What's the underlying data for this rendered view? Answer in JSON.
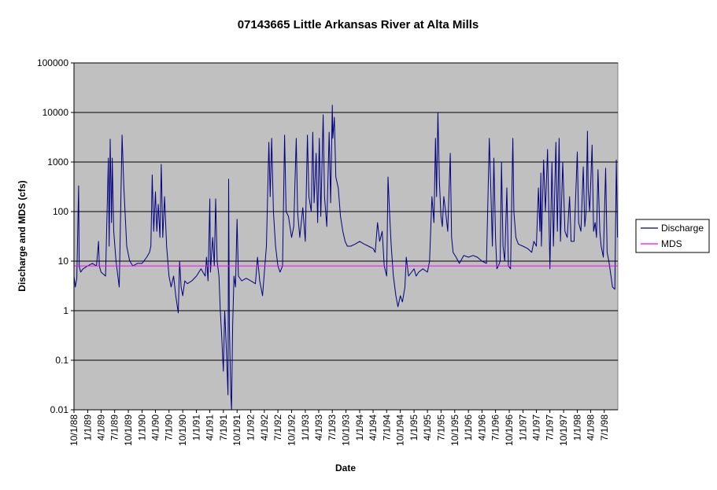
{
  "chart_data": {
    "type": "line",
    "title": "07143665 Little Arkansas River at Alta Mills",
    "xlabel": "Date",
    "ylabel": "Discharge and MDS (cfs)",
    "y_scale": "log",
    "ylim": [
      0.01,
      100000
    ],
    "y_ticks": [
      "0.01",
      "0.1",
      "1",
      "10",
      "100",
      "1000",
      "10000",
      "100000"
    ],
    "xlim": [
      "1988-10-01",
      "1998-09-30"
    ],
    "x_ticks": [
      "10/1/88",
      "1/1/89",
      "4/1/89",
      "7/1/89",
      "10/1/89",
      "1/1/90",
      "4/1/90",
      "7/1/90",
      "10/1/90",
      "1/1/91",
      "4/1/91",
      "7/1/91",
      "10/1/91",
      "1/1/92",
      "4/1/92",
      "7/1/92",
      "10/1/92",
      "1/1/93",
      "4/1/93",
      "7/1/93",
      "10/1/93",
      "1/1/94",
      "4/1/94",
      "7/1/94",
      "10/1/94",
      "1/1/95",
      "4/1/95",
      "7/1/95",
      "10/1/95",
      "1/1/96",
      "4/1/96",
      "7/1/96",
      "10/1/96",
      "1/1/97",
      "4/1/97",
      "7/1/97",
      "10/1/97",
      "1/1/98",
      "4/1/98",
      "7/1/98"
    ],
    "grid": true,
    "legend_position": "right",
    "background": "#c0c0c0",
    "series": [
      {
        "name": "Discharge",
        "color": "#000080",
        "points": [
          [
            "1988-10-01",
            5
          ],
          [
            "1988-10-10",
            3
          ],
          [
            "1988-10-20",
            4.5
          ],
          [
            "1988-11-01",
            330
          ],
          [
            "1988-11-05",
            8
          ],
          [
            "1988-11-15",
            6
          ],
          [
            "1988-12-01",
            7
          ],
          [
            "1989-01-01",
            8
          ],
          [
            "1989-02-01",
            9
          ],
          [
            "1989-03-01",
            8
          ],
          [
            "1989-03-15",
            25
          ],
          [
            "1989-03-20",
            8
          ],
          [
            "1989-04-01",
            6
          ],
          [
            "1989-05-01",
            5
          ],
          [
            "1989-05-20",
            1200
          ],
          [
            "1989-05-25",
            20
          ],
          [
            "1989-06-01",
            2900
          ],
          [
            "1989-06-10",
            60
          ],
          [
            "1989-06-15",
            1200
          ],
          [
            "1989-06-25",
            40
          ],
          [
            "1989-07-10",
            10
          ],
          [
            "1989-08-01",
            3
          ],
          [
            "1989-08-20",
            3500
          ],
          [
            "1989-09-01",
            300
          ],
          [
            "1989-09-20",
            20
          ],
          [
            "1989-10-10",
            10
          ],
          [
            "1989-11-01",
            8
          ],
          [
            "1989-12-01",
            9
          ],
          [
            "1990-01-01",
            9
          ],
          [
            "1990-02-01",
            12
          ],
          [
            "1990-02-20",
            15
          ],
          [
            "1990-03-01",
            20
          ],
          [
            "1990-03-10",
            550
          ],
          [
            "1990-03-20",
            40
          ],
          [
            "1990-04-01",
            250
          ],
          [
            "1990-04-10",
            40
          ],
          [
            "1990-04-20",
            140
          ],
          [
            "1990-05-01",
            30
          ],
          [
            "1990-05-10",
            900
          ],
          [
            "1990-05-20",
            30
          ],
          [
            "1990-06-01",
            200
          ],
          [
            "1990-06-15",
            20
          ],
          [
            "1990-07-01",
            5
          ],
          [
            "1990-07-15",
            3
          ],
          [
            "1990-08-01",
            5
          ],
          [
            "1990-08-15",
            2
          ],
          [
            "1990-09-01",
            0.9
          ],
          [
            "1990-09-10",
            10
          ],
          [
            "1990-09-20",
            3
          ],
          [
            "1990-10-01",
            2
          ],
          [
            "1990-10-15",
            4
          ],
          [
            "1990-11-01",
            3.5
          ],
          [
            "1990-12-01",
            4
          ],
          [
            "1991-01-01",
            5
          ],
          [
            "1991-02-01",
            7
          ],
          [
            "1991-03-01",
            5
          ],
          [
            "1991-03-10",
            12
          ],
          [
            "1991-03-20",
            4
          ],
          [
            "1991-04-01",
            180
          ],
          [
            "1991-04-05",
            6
          ],
          [
            "1991-04-20",
            30
          ],
          [
            "1991-05-01",
            8
          ],
          [
            "1991-05-10",
            180
          ],
          [
            "1991-05-20",
            10
          ],
          [
            "1991-06-01",
            5
          ],
          [
            "1991-06-10",
            1
          ],
          [
            "1991-06-20",
            0.3
          ],
          [
            "1991-07-01",
            0.06
          ],
          [
            "1991-07-10",
            1
          ],
          [
            "1991-07-20",
            0.2
          ],
          [
            "1991-08-01",
            0.02
          ],
          [
            "1991-08-05",
            450
          ],
          [
            "1991-08-10",
            0.5
          ],
          [
            "1991-08-20",
            0.02
          ],
          [
            "1991-08-25",
            0.01
          ],
          [
            "1991-09-01",
            0.5
          ],
          [
            "1991-09-10",
            5
          ],
          [
            "1991-09-20",
            3
          ],
          [
            "1991-10-01",
            70
          ],
          [
            "1991-10-10",
            5
          ],
          [
            "1991-11-01",
            4
          ],
          [
            "1991-12-01",
            4.5
          ],
          [
            "1992-01-01",
            4
          ],
          [
            "1992-02-01",
            3.5
          ],
          [
            "1992-02-15",
            12
          ],
          [
            "1992-03-01",
            4
          ],
          [
            "1992-03-20",
            2
          ],
          [
            "1992-04-01",
            6
          ],
          [
            "1992-04-15",
            20
          ],
          [
            "1992-05-01",
            2500
          ],
          [
            "1992-05-10",
            200
          ],
          [
            "1992-05-20",
            3000
          ],
          [
            "1992-06-01",
            100
          ],
          [
            "1992-06-15",
            20
          ],
          [
            "1992-07-01",
            8
          ],
          [
            "1992-07-15",
            6
          ],
          [
            "1992-08-01",
            8
          ],
          [
            "1992-08-15",
            3500
          ],
          [
            "1992-08-25",
            100
          ],
          [
            "1992-09-10",
            80
          ],
          [
            "1992-10-01",
            30
          ],
          [
            "1992-10-15",
            50
          ],
          [
            "1992-11-01",
            3000
          ],
          [
            "1992-11-10",
            100
          ],
          [
            "1992-11-25",
            30
          ],
          [
            "1992-12-15",
            120
          ],
          [
            "1993-01-01",
            25
          ],
          [
            "1993-01-15",
            3500
          ],
          [
            "1993-01-25",
            200
          ],
          [
            "1993-02-10",
            100
          ],
          [
            "1993-02-20",
            4000
          ],
          [
            "1993-03-01",
            150
          ],
          [
            "1993-03-15",
            1500
          ],
          [
            "1993-03-25",
            60
          ],
          [
            "1993-04-05",
            3000
          ],
          [
            "1993-04-15",
            80
          ],
          [
            "1993-05-01",
            9000
          ],
          [
            "1993-05-10",
            200
          ],
          [
            "1993-05-25",
            50
          ],
          [
            "1993-06-10",
            4000
          ],
          [
            "1993-06-20",
            150
          ],
          [
            "1993-07-01",
            14000
          ],
          [
            "1993-07-05",
            3000
          ],
          [
            "1993-07-15",
            8000
          ],
          [
            "1993-07-25",
            500
          ],
          [
            "1993-08-10",
            300
          ],
          [
            "1993-08-25",
            80
          ],
          [
            "1993-09-10",
            40
          ],
          [
            "1993-09-25",
            25
          ],
          [
            "1993-10-10",
            20
          ],
          [
            "1993-11-01",
            20
          ],
          [
            "1993-12-01",
            22
          ],
          [
            "1994-01-01",
            25
          ],
          [
            "1994-02-01",
            22
          ],
          [
            "1994-03-01",
            20
          ],
          [
            "1994-04-01",
            18
          ],
          [
            "1994-04-15",
            15
          ],
          [
            "1994-05-01",
            60
          ],
          [
            "1994-05-15",
            25
          ],
          [
            "1994-06-01",
            40
          ],
          [
            "1994-06-15",
            8
          ],
          [
            "1994-07-01",
            5
          ],
          [
            "1994-07-10",
            500
          ],
          [
            "1994-07-20",
            100
          ],
          [
            "1994-08-01",
            20
          ],
          [
            "1994-08-15",
            5
          ],
          [
            "1994-09-01",
            2
          ],
          [
            "1994-09-15",
            1.2
          ],
          [
            "1994-10-01",
            2
          ],
          [
            "1994-10-15",
            1.5
          ],
          [
            "1994-11-01",
            3
          ],
          [
            "1994-11-10",
            12
          ],
          [
            "1994-11-25",
            5
          ],
          [
            "1994-12-15",
            6
          ],
          [
            "1995-01-01",
            7
          ],
          [
            "1995-01-15",
            5
          ],
          [
            "1995-02-01",
            6
          ],
          [
            "1995-03-01",
            7
          ],
          [
            "1995-04-01",
            6
          ],
          [
            "1995-04-15",
            10
          ],
          [
            "1995-05-01",
            200
          ],
          [
            "1995-05-15",
            60
          ],
          [
            "1995-05-25",
            3000
          ],
          [
            "1995-06-01",
            200
          ],
          [
            "1995-06-10",
            10000
          ],
          [
            "1995-06-20",
            400
          ],
          [
            "1995-07-01",
            80
          ],
          [
            "1995-07-10",
            50
          ],
          [
            "1995-07-20",
            200
          ],
          [
            "1995-08-01",
            100
          ],
          [
            "1995-08-15",
            40
          ],
          [
            "1995-09-01",
            1500
          ],
          [
            "1995-09-10",
            30
          ],
          [
            "1995-09-20",
            15
          ],
          [
            "1995-10-10",
            12
          ],
          [
            "1995-11-01",
            9
          ],
          [
            "1995-12-01",
            13
          ],
          [
            "1996-01-01",
            12
          ],
          [
            "1996-02-01",
            13
          ],
          [
            "1996-03-01",
            12
          ],
          [
            "1996-04-01",
            10
          ],
          [
            "1996-05-01",
            9
          ],
          [
            "1996-05-20",
            3000
          ],
          [
            "1996-06-01",
            200
          ],
          [
            "1996-06-10",
            20
          ],
          [
            "1996-06-20",
            1200
          ],
          [
            "1996-07-01",
            30
          ],
          [
            "1996-07-10",
            7
          ],
          [
            "1996-07-20",
            8
          ],
          [
            "1996-08-01",
            10
          ],
          [
            "1996-08-10",
            1000
          ],
          [
            "1996-08-20",
            20
          ],
          [
            "1996-09-01",
            10
          ],
          [
            "1996-09-15",
            300
          ],
          [
            "1996-09-25",
            8
          ],
          [
            "1996-10-10",
            7
          ],
          [
            "1996-10-25",
            3000
          ],
          [
            "1996-11-01",
            100
          ],
          [
            "1996-11-15",
            30
          ],
          [
            "1996-12-01",
            22
          ],
          [
            "1997-01-01",
            20
          ],
          [
            "1997-02-01",
            18
          ],
          [
            "1997-03-01",
            15
          ],
          [
            "1997-03-15",
            25
          ],
          [
            "1997-04-01",
            20
          ],
          [
            "1997-04-15",
            300
          ],
          [
            "1997-04-25",
            40
          ],
          [
            "1997-05-01",
            600
          ],
          [
            "1997-05-05",
            20
          ],
          [
            "1997-05-20",
            1100
          ],
          [
            "1997-06-01",
            100
          ],
          [
            "1997-06-15",
            1800
          ],
          [
            "1997-06-25",
            60
          ],
          [
            "1997-07-01",
            7
          ],
          [
            "1997-07-15",
            1000
          ],
          [
            "1997-07-25",
            20
          ],
          [
            "1997-08-10",
            2500
          ],
          [
            "1997-08-20",
            40
          ],
          [
            "1997-09-01",
            3000
          ],
          [
            "1997-09-10",
            25
          ],
          [
            "1997-09-25",
            1000
          ],
          [
            "1997-10-10",
            40
          ],
          [
            "1997-10-25",
            30
          ],
          [
            "1997-11-10",
            200
          ],
          [
            "1997-11-20",
            25
          ],
          [
            "1997-12-10",
            25
          ],
          [
            "1998-01-01",
            1600
          ],
          [
            "1998-01-10",
            60
          ],
          [
            "1998-01-25",
            40
          ],
          [
            "1998-02-10",
            800
          ],
          [
            "1998-02-20",
            50
          ],
          [
            "1998-03-01",
            100
          ],
          [
            "1998-03-10",
            4200
          ],
          [
            "1998-03-15",
            300
          ],
          [
            "1998-03-25",
            100
          ],
          [
            "1998-04-10",
            2200
          ],
          [
            "1998-04-20",
            40
          ],
          [
            "1998-05-01",
            60
          ],
          [
            "1998-05-10",
            30
          ],
          [
            "1998-05-20",
            700
          ],
          [
            "1998-06-01",
            40
          ],
          [
            "1998-06-10",
            20
          ],
          [
            "1998-06-25",
            12
          ],
          [
            "1998-07-10",
            750
          ],
          [
            "1998-07-20",
            15
          ],
          [
            "1998-08-01",
            10
          ],
          [
            "1998-08-15",
            5
          ],
          [
            "1998-08-25",
            3
          ],
          [
            "1998-09-10",
            2.7
          ],
          [
            "1998-09-20",
            1100
          ],
          [
            "1998-09-28",
            30
          ]
        ]
      },
      {
        "name": "MDS",
        "color": "#ff00ff",
        "points": [
          [
            "1988-10-01",
            8
          ],
          [
            "1998-09-30",
            8
          ]
        ]
      }
    ]
  }
}
